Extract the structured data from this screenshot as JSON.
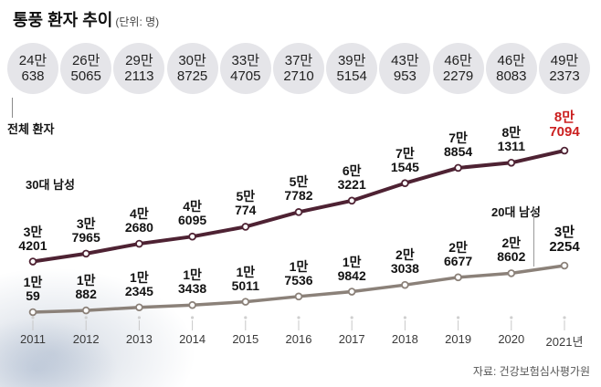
{
  "header": {
    "title": "통풍 환자 추이",
    "unit": "(단위: 명)"
  },
  "labels": {
    "total": "전체 환자",
    "series30": "30대 남성",
    "series20": "20대 남성"
  },
  "source": "자료: 건강보험심사평가원",
  "colors": {
    "series30": "#4e2233",
    "series20": "#8b8179",
    "highlight": "#cb1f1f",
    "circle_bg": "#e5e5e9",
    "tick": "#c8c8c8"
  },
  "chart_data": {
    "type": "line",
    "title": "통풍 환자 추이",
    "unit": "명",
    "grid": false,
    "categories": [
      "2011",
      "2012",
      "2013",
      "2014",
      "2015",
      "2016",
      "2017",
      "2018",
      "2019",
      "2020",
      "2021년"
    ],
    "series": [
      {
        "name": "전체 환자",
        "style": "circle-badges",
        "values": [
          240638,
          265065,
          292113,
          308725,
          334705,
          372710,
          395154,
          430953,
          462279,
          468083,
          492373
        ],
        "display": [
          [
            "24만",
            "638"
          ],
          [
            "26만",
            "5065"
          ],
          [
            "29만",
            "2113"
          ],
          [
            "30만",
            "8725"
          ],
          [
            "33만",
            "4705"
          ],
          [
            "37만",
            "2710"
          ],
          [
            "39만",
            "5154"
          ],
          [
            "43만",
            "953"
          ],
          [
            "46만",
            "2279"
          ],
          [
            "46만",
            "8083"
          ],
          [
            "49만",
            "2373"
          ]
        ]
      },
      {
        "name": "30대 남성",
        "color": "#4e2233",
        "values": [
          34201,
          37965,
          42680,
          46095,
          50774,
          57782,
          63221,
          71545,
          78854,
          81311,
          87094
        ],
        "display": [
          [
            "3만",
            "4201"
          ],
          [
            "3만",
            "7965"
          ],
          [
            "4만",
            "2680"
          ],
          [
            "4만",
            "6095"
          ],
          [
            "5만",
            "774"
          ],
          [
            "5만",
            "7782"
          ],
          [
            "6만",
            "3221"
          ],
          [
            "7만",
            "1545"
          ],
          [
            "7만",
            "8854"
          ],
          [
            "8만",
            "1311"
          ],
          [
            "8만",
            "7094"
          ]
        ]
      },
      {
        "name": "20대 남성",
        "color": "#8b8179",
        "values": [
          10059,
          10882,
          12345,
          13438,
          15011,
          17536,
          19842,
          23038,
          26677,
          28602,
          32254
        ],
        "display": [
          [
            "1만",
            "59"
          ],
          [
            "1만",
            "882"
          ],
          [
            "1만",
            "2345"
          ],
          [
            "1만",
            "3438"
          ],
          [
            "1만",
            "5011"
          ],
          [
            "1만",
            "7536"
          ],
          [
            "1만",
            "9842"
          ],
          [
            "2만",
            "3038"
          ],
          [
            "2만",
            "6677"
          ],
          [
            "2만",
            "8602"
          ],
          [
            "3만",
            "2254"
          ]
        ]
      }
    ],
    "source": "자료: 건강보험심사평가원"
  }
}
